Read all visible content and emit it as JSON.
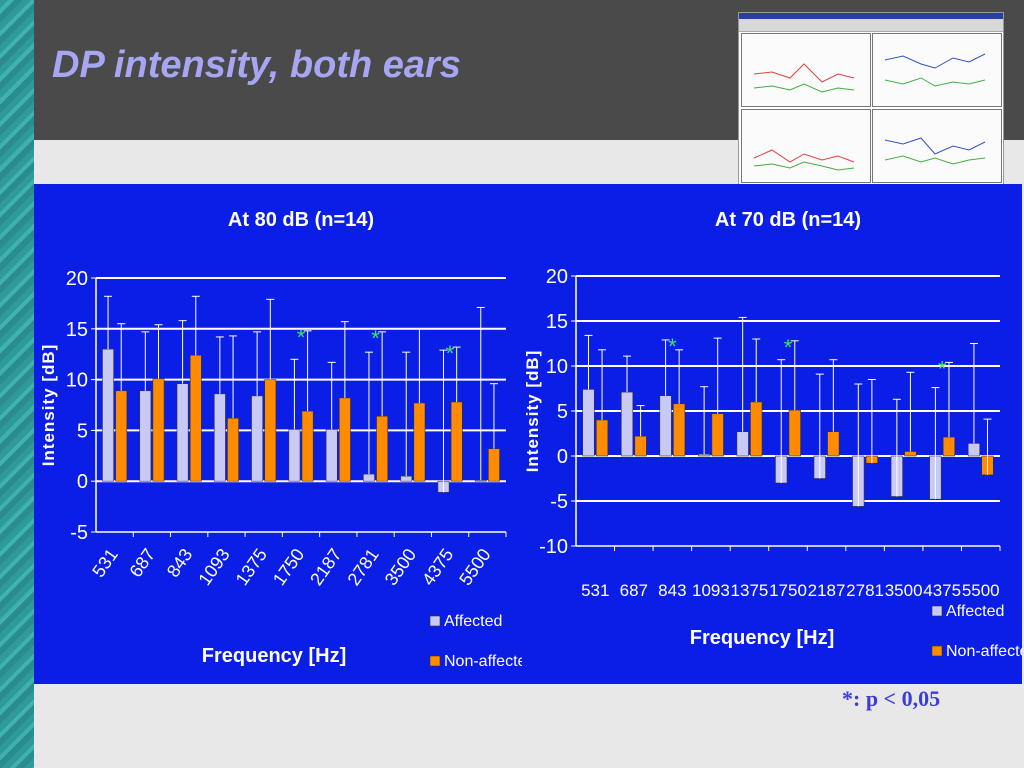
{
  "slide": {
    "title": "DP intensity, both ears",
    "footnote": "*: p < 0,05"
  },
  "colors": {
    "chart_bg": "#0b1ee6",
    "affected": "#c9c9f5",
    "non_affected": "#ff8c00",
    "significance": "#39e56a",
    "grid": "#ffffff",
    "title_text": "#a6a6f2"
  },
  "chart_data": [
    {
      "type": "bar",
      "title": "At 80 dB (n=14)",
      "xlabel": "Frequency [Hz]",
      "ylabel": "Intensity [dB]",
      "ylim": [
        -5,
        20
      ],
      "yticks": [
        -5,
        0,
        5,
        10,
        15,
        20
      ],
      "grid": true,
      "legend": "bottom-right",
      "tick_rotation": "rotated",
      "categories": [
        "531",
        "687",
        "843",
        "1093",
        "1375",
        "1750",
        "2187",
        "2781",
        "3500",
        "4375",
        "5500"
      ],
      "series": [
        {
          "name": "Affected",
          "values": [
            13.0,
            8.9,
            9.6,
            8.6,
            8.4,
            5.1,
            5.1,
            0.7,
            0.5,
            -1.1,
            0.1
          ],
          "err": [
            5.2,
            5.8,
            6.2,
            5.6,
            6.3,
            6.9,
            6.6,
            12.0,
            12.2,
            14.0,
            17.0
          ]
        },
        {
          "name": "Non-affected",
          "values": [
            8.9,
            10.1,
            12.4,
            6.2,
            10.0,
            6.9,
            8.2,
            6.4,
            7.7,
            7.8,
            3.2
          ],
          "err": [
            6.6,
            5.3,
            5.8,
            8.1,
            7.9,
            7.9,
            7.5,
            8.3,
            7.3,
            5.4,
            6.4
          ]
        }
      ],
      "significant": [
        "1750",
        "2781",
        "4375"
      ]
    },
    {
      "type": "bar",
      "title": "At 70 dB (n=14)",
      "xlabel": "Frequency [Hz]",
      "ylabel": "Intensity [dB]",
      "ylim": [
        -10,
        20
      ],
      "yticks": [
        -10,
        -5,
        0,
        5,
        10,
        15,
        20
      ],
      "grid": true,
      "legend": "bottom-right",
      "tick_rotation": "none",
      "categories": [
        "531",
        "687",
        "843",
        "1093",
        "1375",
        "1750",
        "2187",
        "2781",
        "3500",
        "4375",
        "5500"
      ],
      "series": [
        {
          "name": "Affected",
          "values": [
            7.4,
            7.1,
            6.7,
            0.2,
            2.7,
            -3.0,
            -2.5,
            -5.6,
            -4.5,
            -4.8,
            1.4
          ],
          "err": [
            6.0,
            4.0,
            6.2,
            7.5,
            12.7,
            13.7,
            11.6,
            13.6,
            10.8,
            12.4,
            11.1
          ]
        },
        {
          "name": "Non-affected",
          "values": [
            4.0,
            2.2,
            5.8,
            4.7,
            6.0,
            5.1,
            2.7,
            -0.8,
            0.5,
            2.1,
            -2.1
          ],
          "err": [
            7.8,
            3.4,
            6.0,
            8.4,
            7.0,
            7.7,
            8.0,
            9.3,
            8.8,
            8.3,
            6.2
          ]
        }
      ],
      "significant": [
        "843",
        "1750",
        "4375"
      ]
    }
  ]
}
